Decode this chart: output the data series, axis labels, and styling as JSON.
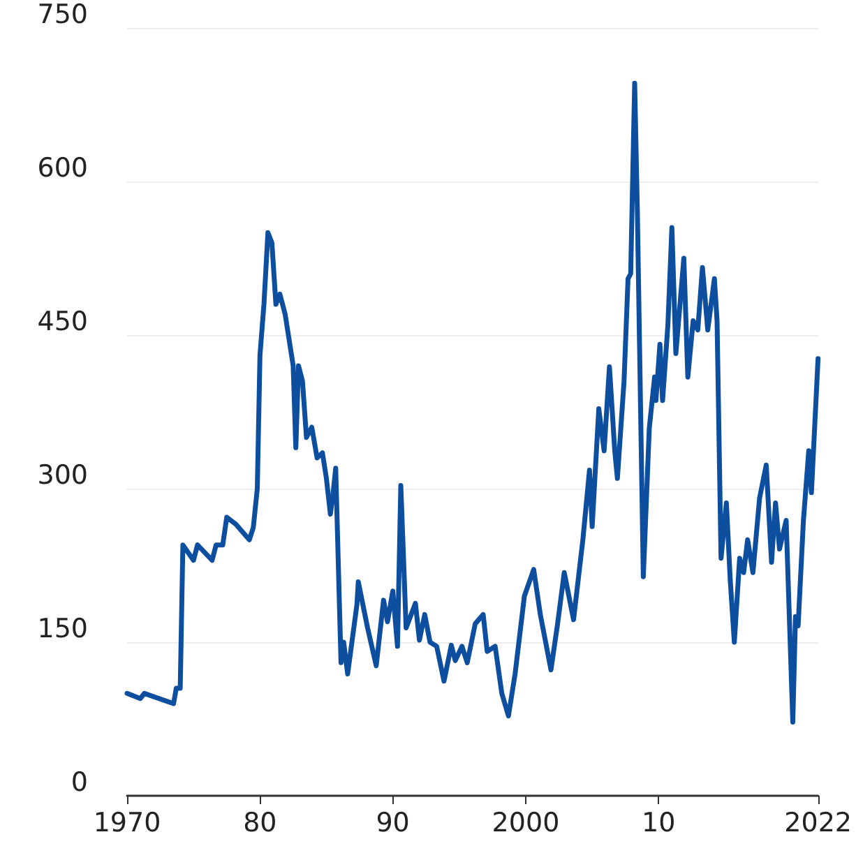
{
  "chart_data": {
    "type": "line",
    "xlim": [
      1970,
      2022
    ],
    "ylim": [
      0,
      750
    ],
    "xticks": [
      1970,
      {
        "value": 1980,
        "label": "80"
      },
      {
        "value": 1990,
        "label": "90"
      },
      2000,
      {
        "value": 2010,
        "label": "10"
      },
      2022
    ],
    "yticks": [
      0,
      150,
      300,
      450,
      600,
      750
    ],
    "grid": "y",
    "marker": "none",
    "line_style": "solid",
    "series": [
      {
        "color": "#0d4f9e",
        "x": [
          1970.0,
          1971.0,
          1971.3,
          1973.5,
          1973.7,
          1974.0,
          1974.2,
          1975.0,
          1975.3,
          1976.4,
          1976.7,
          1977.2,
          1977.5,
          1978.2,
          1979.2,
          1979.5,
          1979.8,
          1980.0,
          1980.3,
          1980.6,
          1980.9,
          1981.2,
          1981.5,
          1981.9,
          1982.2,
          1982.5,
          1982.7,
          1982.9,
          1983.2,
          1983.5,
          1983.9,
          1984.3,
          1984.7,
          1985.0,
          1985.3,
          1985.5,
          1985.7,
          1986.1,
          1986.3,
          1986.6,
          1987.3,
          1987.4,
          1988.1,
          1988.75,
          1989.3,
          1989.6,
          1990.0,
          1990.35,
          1990.6,
          1991.0,
          1991.7,
          1992.0,
          1992.4,
          1992.8,
          1993.3,
          1993.85,
          1994.4,
          1994.7,
          1995.2,
          1995.6,
          1996.2,
          1996.8,
          1997.1,
          1997.7,
          1998.2,
          1998.7,
          1999.2,
          1999.9,
          2000.6,
          2001.1,
          2001.9,
          2002.4,
          2002.9,
          2003.6,
          2004.3,
          2004.8,
          2005.0,
          2005.5,
          2005.9,
          2006.3,
          2006.7,
          2006.9,
          2007.4,
          2007.7,
          2007.9,
          2008.2,
          2008.4,
          2008.85,
          2009.3,
          2009.7,
          2009.8,
          2010.1,
          2010.3,
          2010.7,
          2011.0,
          2011.3,
          2011.9,
          2012.2,
          2012.6,
          2012.95,
          2013.3,
          2013.7,
          2014.2,
          2014.4,
          2014.7,
          2015.1,
          2015.4,
          2015.7,
          2016.1,
          2016.4,
          2016.7,
          2017.1,
          2017.6,
          2018.1,
          2018.5,
          2018.8,
          2019.1,
          2019.6,
          2020.1,
          2020.3,
          2020.5,
          2020.9,
          2021.3,
          2021.5,
          2022.0
        ],
        "values": [
          100,
          95,
          100,
          90,
          105,
          105,
          245,
          230,
          245,
          230,
          245,
          245,
          272,
          265,
          250,
          262,
          300,
          430,
          480,
          550,
          540,
          480,
          490,
          470,
          445,
          420,
          340,
          420,
          405,
          350,
          360,
          330,
          335,
          310,
          275,
          295,
          320,
          130,
          150,
          119,
          187,
          209,
          164,
          127,
          191,
          170,
          200,
          146,
          303,
          164,
          188,
          152,
          177,
          150,
          146,
          112,
          147,
          132,
          146,
          130,
          168,
          177,
          141,
          146,
          100,
          78,
          119,
          195,
          221,
          177,
          123,
          168,
          218,
          172,
          250,
          318,
          263,
          378,
          337,
          419,
          337,
          310,
          405,
          505,
          510,
          696,
          573,
          214,
          359,
          409,
          386,
          441,
          386,
          460,
          555,
          432,
          525,
          409,
          464,
          455,
          516,
          455,
          505,
          464,
          232,
          286,
          209,
          150,
          232,
          218,
          250,
          218,
          291,
          323,
          228,
          286,
          241,
          269,
          72,
          175,
          166,
          269,
          337,
          296,
          427
        ]
      }
    ]
  }
}
